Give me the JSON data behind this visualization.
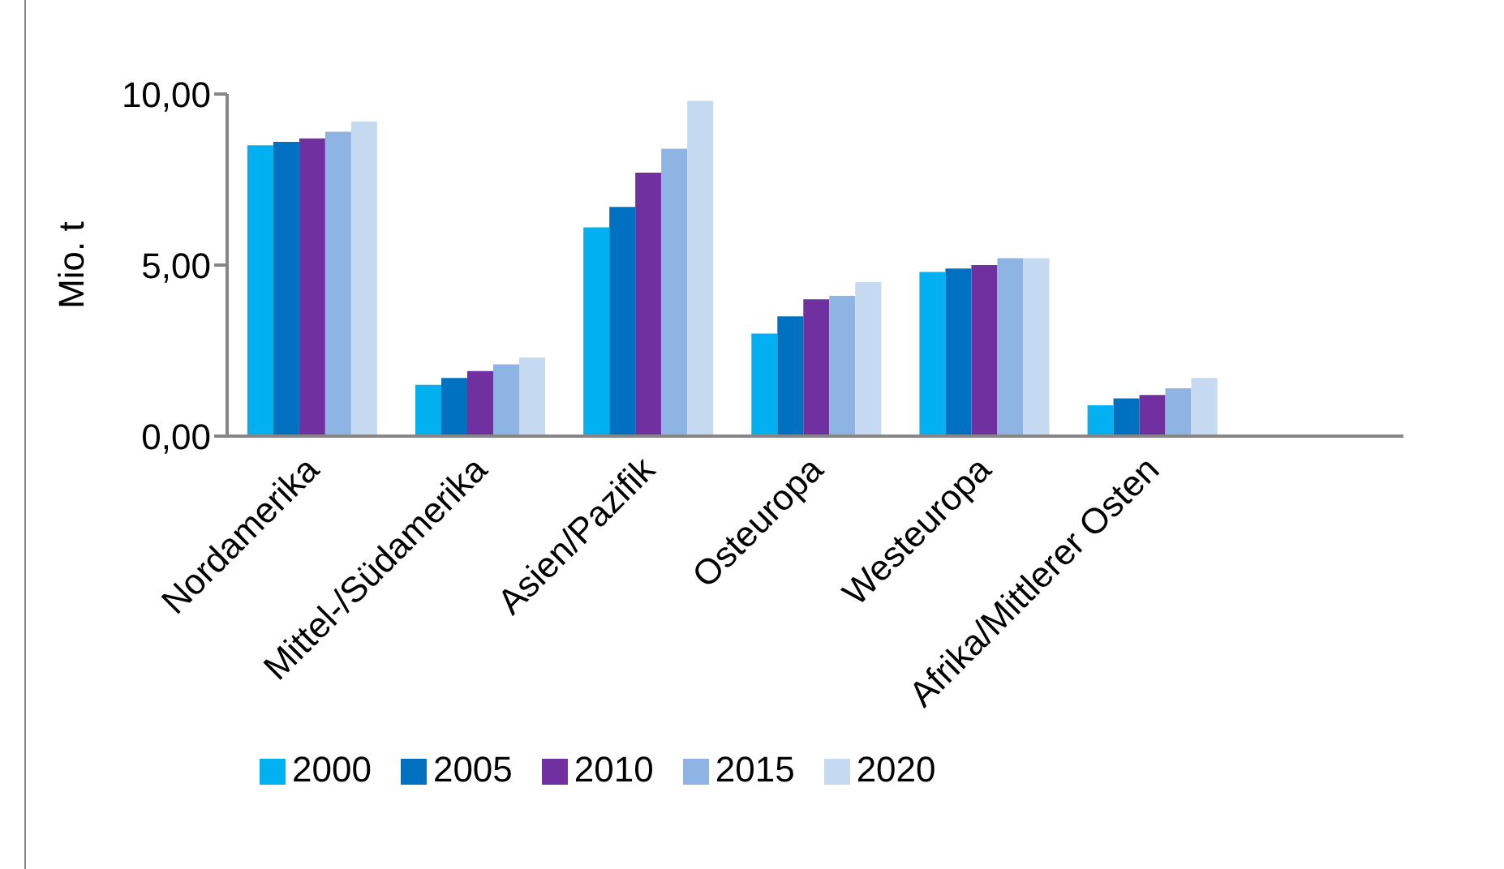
{
  "chart_data": {
    "type": "bar",
    "ylabel": "Mio. t",
    "categories": [
      "Nordamerika",
      "Mittel-/Südamerika",
      "Asien/Pazifik",
      "Osteuropa",
      "Westeuropa",
      "Afrika/Mittlerer Osten",
      null
    ],
    "series": [
      {
        "name": "2000",
        "color": "#00b0f0",
        "values": [
          8.5,
          1.5,
          6.1,
          3.0,
          4.8,
          0.9,
          null
        ]
      },
      {
        "name": "2005",
        "color": "#0070c0",
        "values": [
          8.6,
          1.7,
          6.7,
          3.5,
          4.9,
          1.1,
          null
        ]
      },
      {
        "name": "2010",
        "color": "#7030a0",
        "values": [
          8.7,
          1.9,
          7.7,
          4.0,
          5.0,
          1.2,
          null
        ]
      },
      {
        "name": "2015",
        "color": "#8db4e2",
        "values": [
          8.9,
          2.1,
          8.4,
          4.1,
          5.2,
          1.4,
          null
        ]
      },
      {
        "name": "2020",
        "color": "#c5d9f1",
        "values": [
          9.2,
          2.3,
          9.8,
          4.5,
          5.2,
          1.7,
          null
        ]
      }
    ],
    "ylim": [
      0,
      10
    ],
    "yticks": [
      {
        "value": 0,
        "label": "0,00"
      },
      {
        "value": 5,
        "label": "5,00"
      },
      {
        "value": 10,
        "label": "10,00"
      }
    ],
    "legend": "bottom"
  }
}
